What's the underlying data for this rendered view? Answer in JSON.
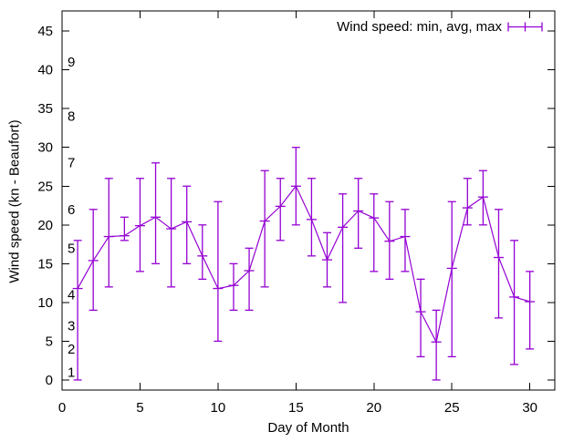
{
  "window": {
    "background": "#ffffff",
    "border_color": "#000000",
    "text_color": "#000000"
  },
  "chart_data": {
    "type": "line",
    "subtype": "yerrorlines",
    "title": "",
    "xlabel": "Day of Month",
    "ylabel": "Wind speed (kn - Beaufort)",
    "legend": {
      "label": "Wind speed: min, avg, max",
      "position": "top-right-inside",
      "symbol": "errorbar"
    },
    "series_color": "#9400d3",
    "grid": false,
    "tick_mirror": true,
    "xlim": [
      0,
      31.6
    ],
    "ylim": [
      -1.3,
      47.6
    ],
    "x_ticks": [
      0,
      5,
      10,
      15,
      20,
      25,
      30
    ],
    "y_ticks": [
      0,
      5,
      10,
      15,
      20,
      25,
      30,
      35,
      40,
      45
    ],
    "beaufort_scale_labels": [
      {
        "label": "1",
        "kn": 1
      },
      {
        "label": "2",
        "kn": 4
      },
      {
        "label": "3",
        "kn": 7
      },
      {
        "label": "4",
        "kn": 11
      },
      {
        "label": "5",
        "kn": 17
      },
      {
        "label": "6",
        "kn": 22
      },
      {
        "label": "7",
        "kn": 28
      },
      {
        "label": "8",
        "kn": 34
      },
      {
        "label": "9",
        "kn": 41
      }
    ],
    "series": [
      {
        "name": "Wind speed: min, avg, max",
        "x": [
          1,
          2,
          3,
          4,
          5,
          6,
          7,
          8,
          9,
          10,
          11,
          12,
          13,
          14,
          15,
          16,
          17,
          18,
          19,
          20,
          21,
          22,
          23,
          24,
          25,
          26,
          27,
          28,
          29,
          30
        ],
        "avg": [
          11.8,
          15.4,
          18.5,
          18.6,
          19.9,
          21.0,
          19.5,
          20.4,
          16.0,
          11.8,
          12.2,
          14.1,
          20.5,
          22.4,
          25.0,
          20.7,
          15.5,
          19.7,
          21.8,
          20.9,
          17.9,
          18.5,
          8.8,
          4.9,
          14.4,
          22.2,
          23.6,
          15.8,
          10.7,
          10.1
        ],
        "min": [
          0,
          9,
          12,
          18,
          14,
          15,
          12,
          15,
          13,
          5,
          9,
          9,
          12,
          18,
          20,
          16,
          12,
          10,
          17,
          14,
          13,
          14,
          3,
          0,
          3,
          20,
          20,
          8,
          2,
          4
        ],
        "max": [
          18,
          22,
          26,
          21,
          26,
          28,
          26,
          25,
          20,
          23,
          15,
          17,
          27,
          26,
          30,
          26,
          19,
          24,
          26,
          24,
          23,
          22,
          13,
          9,
          23,
          26,
          27,
          22,
          18,
          14
        ]
      }
    ]
  }
}
